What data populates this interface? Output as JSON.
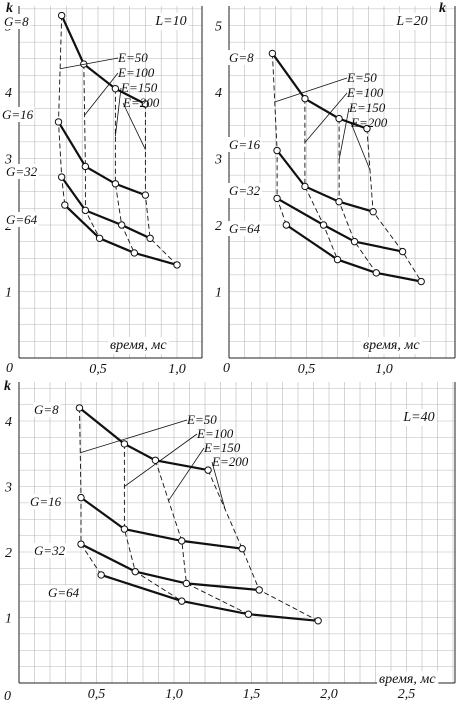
{
  "chart_data": [
    {
      "type": "line",
      "panel_label": "L=10",
      "xlabel": "время, мс",
      "ylabel": "k",
      "xlim": [
        0,
        1.2
      ],
      "ylim": [
        0,
        5.3
      ],
      "x_ticks": [
        0,
        0.5,
        1.0
      ],
      "x_tick_labels": [
        "0",
        "0,5",
        "1,0"
      ],
      "y_ticks": [
        1,
        2,
        3,
        4,
        5
      ],
      "y_tick_labels": [
        "1",
        "2",
        "3",
        "4",
        "5"
      ],
      "grid": true,
      "series": [
        {
          "name": "G=8",
          "x": [
            0.27,
            0.41,
            0.61,
            0.8
          ],
          "y": [
            5.15,
            4.42,
            4.05,
            3.82
          ]
        },
        {
          "name": "G=16",
          "x": [
            0.25,
            0.42,
            0.61,
            0.8
          ],
          "y": [
            3.55,
            2.88,
            2.62,
            2.45
          ]
        },
        {
          "name": "G=32",
          "x": [
            0.27,
            0.42,
            0.65,
            0.83
          ],
          "y": [
            2.72,
            2.22,
            2.0,
            1.8
          ]
        },
        {
          "name": "G=64",
          "x": [
            0.29,
            0.51,
            0.73,
            1.0
          ],
          "y": [
            2.3,
            1.8,
            1.58,
            1.4
          ]
        }
      ],
      "e_series": [
        {
          "name": "E=50",
          "x": [
            0.27,
            0.25,
            0.27,
            0.29
          ],
          "y": [
            5.15,
            3.55,
            2.72,
            2.3
          ]
        },
        {
          "name": "E=100",
          "x": [
            0.41,
            0.42,
            0.42,
            0.51
          ],
          "y": [
            4.42,
            2.88,
            2.22,
            1.8
          ]
        },
        {
          "name": "E=150",
          "x": [
            0.61,
            0.61,
            0.65,
            0.73
          ],
          "y": [
            4.05,
            2.62,
            2.0,
            1.58
          ]
        },
        {
          "name": "E=200",
          "x": [
            0.8,
            0.8,
            0.83,
            1.0
          ],
          "y": [
            3.82,
            2.45,
            1.8,
            1.4
          ]
        }
      ]
    },
    {
      "type": "line",
      "panel_label": "L=20",
      "xlabel": "время, мс",
      "ylabel": "k",
      "xlim": [
        0,
        1.3
      ],
      "ylim": [
        0,
        5.3
      ],
      "x_ticks": [
        0,
        0.5,
        1.0
      ],
      "x_tick_labels": [
        "0",
        "0,5",
        "1,0"
      ],
      "y_ticks": [
        1,
        2,
        3,
        4,
        5
      ],
      "y_tick_labels": [
        "1",
        "2",
        "3",
        "4",
        "5"
      ],
      "grid": true,
      "series": [
        {
          "name": "G=8",
          "x": [
            0.28,
            0.49,
            0.71,
            0.89
          ],
          "y": [
            4.58,
            3.9,
            3.6,
            3.45
          ]
        },
        {
          "name": "G=16",
          "x": [
            0.31,
            0.49,
            0.71,
            0.93
          ],
          "y": [
            3.12,
            2.58,
            2.35,
            2.2
          ]
        },
        {
          "name": "G=32",
          "x": [
            0.31,
            0.61,
            0.81,
            1.12
          ],
          "y": [
            2.4,
            2.0,
            1.75,
            1.6
          ]
        },
        {
          "name": "G=64",
          "x": [
            0.37,
            0.7,
            0.95,
            1.24
          ],
          "y": [
            2.0,
            1.48,
            1.28,
            1.15
          ]
        }
      ],
      "e_series": [
        {
          "name": "E=50",
          "x": [
            0.28,
            0.31,
            0.31,
            0.37
          ],
          "y": [
            4.58,
            3.12,
            2.4,
            2.0
          ]
        },
        {
          "name": "E=100",
          "x": [
            0.49,
            0.49,
            0.61,
            0.7
          ],
          "y": [
            3.9,
            2.58,
            2.0,
            1.48
          ]
        },
        {
          "name": "E=150",
          "x": [
            0.71,
            0.71,
            0.81,
            0.95
          ],
          "y": [
            3.6,
            2.35,
            1.75,
            1.28
          ]
        },
        {
          "name": "E=200",
          "x": [
            0.89,
            0.93,
            1.12,
            1.24
          ],
          "y": [
            3.45,
            2.2,
            1.6,
            1.15
          ]
        }
      ]
    },
    {
      "type": "line",
      "panel_label": "L=40",
      "xlabel": "время, мс",
      "ylabel": "k",
      "xlim": [
        0,
        2.6
      ],
      "ylim": [
        0,
        4.5
      ],
      "x_ticks": [
        0,
        0.5,
        1.0,
        1.5,
        2.0,
        2.5
      ],
      "x_tick_labels": [
        "0",
        "0,5",
        "1,0",
        "1,5",
        "2,0",
        "2,5"
      ],
      "y_ticks": [
        1,
        2,
        3,
        4
      ],
      "y_tick_labels": [
        "1",
        "2",
        "3",
        "4"
      ],
      "grid": true,
      "series": [
        {
          "name": "G=8",
          "x": [
            0.39,
            0.68,
            0.88,
            1.22
          ],
          "y": [
            4.2,
            3.65,
            3.4,
            3.25
          ]
        },
        {
          "name": "G=16",
          "x": [
            0.4,
            0.68,
            1.05,
            1.44
          ],
          "y": [
            2.83,
            2.35,
            2.17,
            2.05
          ]
        },
        {
          "name": "G=32",
          "x": [
            0.4,
            0.75,
            1.08,
            1.55
          ],
          "y": [
            2.12,
            1.7,
            1.52,
            1.42
          ]
        },
        {
          "name": "G=64",
          "x": [
            0.53,
            1.05,
            1.48,
            1.93
          ],
          "y": [
            1.65,
            1.25,
            1.05,
            0.95
          ]
        }
      ],
      "e_series": [
        {
          "name": "E=50",
          "x": [
            0.39,
            0.4,
            0.4,
            0.53
          ],
          "y": [
            4.2,
            2.83,
            2.12,
            1.65
          ]
        },
        {
          "name": "E=100",
          "x": [
            0.68,
            0.68,
            0.75,
            1.05
          ],
          "y": [
            3.65,
            2.35,
            1.7,
            1.25
          ]
        },
        {
          "name": "E=150",
          "x": [
            0.88,
            1.05,
            1.08,
            1.48
          ],
          "y": [
            3.4,
            2.17,
            1.52,
            1.05
          ]
        },
        {
          "name": "E=200",
          "x": [
            1.22,
            1.44,
            1.55,
            1.93
          ],
          "y": [
            3.25,
            2.05,
            1.42,
            0.95
          ]
        }
      ]
    }
  ]
}
